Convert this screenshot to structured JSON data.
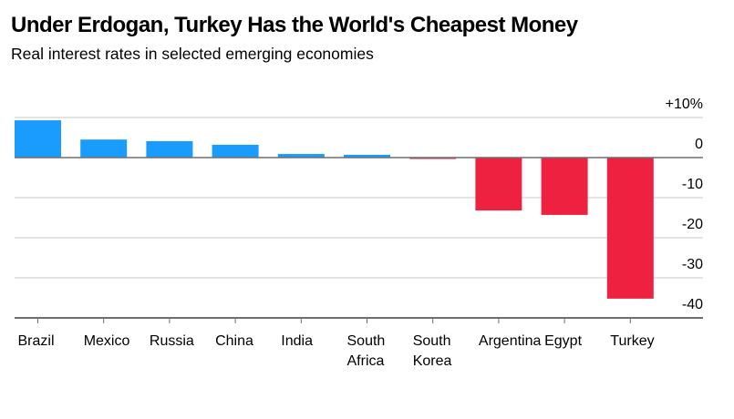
{
  "chart_data": {
    "type": "bar",
    "title": "Under Erdogan, Turkey Has the World's Cheapest Money",
    "subtitle": "Real interest rates in selected emerging economies",
    "xlabel": "",
    "ylabel": "",
    "categories": [
      "Brazil",
      "Mexico",
      "Russia",
      "China",
      "India",
      "South Africa",
      "South Korea",
      "Argentina",
      "Egypt",
      "Turkey"
    ],
    "category_label_lines": [
      [
        "Brazil"
      ],
      [
        "Mexico"
      ],
      [
        "Russia"
      ],
      [
        "China"
      ],
      [
        "India"
      ],
      [
        "South",
        "Africa"
      ],
      [
        "South",
        "Korea"
      ],
      [
        "Argentina"
      ],
      [
        "Egypt"
      ],
      [
        "Turkey"
      ]
    ],
    "values": [
      9.3,
      4.5,
      4.1,
      3.2,
      0.9,
      0.7,
      -0.3,
      -13.2,
      -14.3,
      -35.2
    ],
    "unit": "%",
    "ylim": [
      -40,
      10
    ],
    "yticks": [
      10,
      0,
      -10,
      -20,
      -30,
      -40
    ],
    "ytick_labels": [
      "+10%",
      "0",
      "-10",
      "-20",
      "-30",
      "-40"
    ],
    "yaxis_position": "right",
    "grid": true,
    "colors": {
      "positive": "#1a9cff",
      "negative": "#ee2240",
      "grid": "#dcdcdc",
      "axis": "#6e6e6e"
    },
    "legend": "none"
  }
}
